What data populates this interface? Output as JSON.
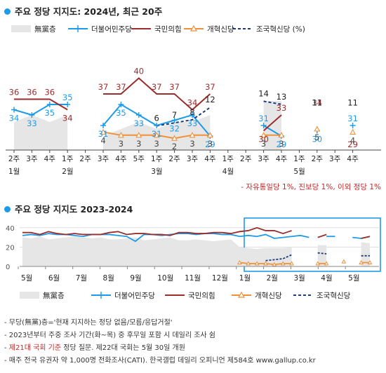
{
  "top": {
    "title": "주요 정당 지지도: 2024년, 최근 20주",
    "footnote": "- 자유통일당 1%, 진보당 1%, 이외 정당 1%"
  },
  "bottom": {
    "title": "주요 정당 지지도 2023-2024"
  },
  "legend": [
    "無黨층",
    "더불어민주당",
    "국민의힘",
    "개혁신당",
    "조국혁신당 (%)"
  ],
  "legend_bottom": [
    "無黨층",
    "더불어민주당",
    "국민의힘",
    "개혁신당",
    "조국혁신당"
  ],
  "colors": {
    "dem": "#1e9be8",
    "ppp": "#9b2d2d",
    "reform": "#f0913a",
    "rebuild": "#1c3d7a",
    "none": "#e6e6e6",
    "accent": "#1e9be8"
  },
  "notes": [
    "- 무당(無黨)층='현재 지지하는 정당 없음/모름/응답거절'",
    "- 2023년부터 주중 조사 기간(화~목) 중 후무일 포함 시 데일리 조사 쉼",
    "- 제21대 국회 기준 정당 질문. 제22대 국회는 5월 30일 개원",
    "- 매주 전국 유권자 약 1,000명 전화조사(CATI). 한국갤럽 데일리 오피니언 제584호 www.gallup.co.kr"
  ],
  "note3_red": "제21대 국회 기준",
  "note3_rest": " 정당 질문. 제22대 국회는 5월 30일 개원",
  "chart_data": [
    {
      "type": "line",
      "x": [
        "2주",
        "3주",
        "4주",
        "1주",
        "2주",
        "3주",
        "4주",
        "5주",
        "1주",
        "2주",
        "3주",
        "4주",
        "1주",
        "2주",
        "3주",
        "4주",
        "1주",
        "2주",
        "3주",
        "4주"
      ],
      "months": [
        {
          "label": "1월",
          "at": 0
        },
        {
          "label": "2월",
          "at": 3
        },
        {
          "label": "3월",
          "at": 8
        },
        {
          "label": "4월",
          "at": 12
        },
        {
          "label": "5월",
          "at": 16
        }
      ],
      "series": [
        {
          "name": "더불어민주당",
          "values": [
            34,
            33,
            35,
            35,
            null,
            31,
            35,
            33,
            31,
            32,
            33,
            29,
            null,
            null,
            31,
            29,
            null,
            30,
            null,
            31
          ]
        },
        {
          "name": "국민의힘",
          "values": [
            36,
            36,
            36,
            34,
            null,
            37,
            37,
            40,
            37,
            37,
            34,
            37,
            null,
            null,
            30,
            33,
            null,
            34,
            null,
            29
          ]
        },
        {
          "name": "개혁신당",
          "values": [
            null,
            null,
            null,
            null,
            null,
            4,
            3,
            3,
            3,
            2,
            3,
            3,
            null,
            null,
            3,
            3,
            null,
            5,
            null,
            4
          ]
        },
        {
          "name": "조국혁신당",
          "values": [
            null,
            null,
            null,
            null,
            null,
            null,
            null,
            null,
            6,
            7,
            8,
            12,
            null,
            null,
            14,
            13,
            null,
            11,
            null,
            11
          ]
        },
        {
          "name": "無黨층",
          "values": [
            19,
            20,
            19,
            20,
            null,
            17,
            18,
            19,
            18,
            19,
            19,
            20,
            null,
            null,
            22,
            22,
            null,
            24,
            null,
            25
          ]
        }
      ]
    },
    {
      "type": "line",
      "title": "주요 정당 지지도 2023-2024",
      "ylim": [
        0,
        40
      ],
      "yticks": [
        "0",
        "20",
        "40"
      ],
      "months": [
        "5월",
        "6월",
        "7월",
        "8월",
        "9월",
        "10월",
        "11월",
        "12월",
        "1월",
        "2월",
        "3월",
        "4월",
        "5월"
      ],
      "highlight_from_month": "2월",
      "series": [
        {
          "name": "더불어민주당",
          "values": [
            32,
            33,
            32,
            34,
            33,
            33,
            32,
            31,
            33,
            33,
            33,
            32,
            31,
            26,
            33,
            33,
            32,
            33,
            34,
            34,
            33,
            34,
            34,
            33,
            33,
            31,
            32,
            31,
            33,
            29,
            30,
            31,
            32,
            30,
            null,
            31,
            31,
            null,
            30,
            29,
            31
          ]
        },
        {
          "name": "국민의힘",
          "values": [
            35,
            35,
            33,
            36,
            34,
            33,
            34,
            33,
            33,
            33,
            35,
            36,
            33,
            34,
            34,
            33,
            33,
            32,
            35,
            35,
            34,
            34,
            35,
            35,
            34,
            36,
            37,
            40,
            37,
            37,
            34,
            37,
            null,
            null,
            30,
            33,
            null,
            34,
            null,
            29,
            31
          ]
        },
        {
          "name": "개혁신당",
          "values": [
            null,
            null,
            null,
            null,
            null,
            null,
            null,
            null,
            null,
            null,
            null,
            null,
            null,
            null,
            null,
            null,
            null,
            null,
            null,
            null,
            null,
            null,
            null,
            null,
            null,
            4,
            3,
            3,
            3,
            2,
            3,
            3,
            null,
            null,
            3,
            3,
            null,
            5,
            null,
            4,
            4
          ]
        },
        {
          "name": "조국혁신당",
          "values": [
            null,
            null,
            null,
            null,
            null,
            null,
            null,
            null,
            null,
            null,
            null,
            null,
            null,
            null,
            null,
            null,
            null,
            null,
            null,
            null,
            null,
            null,
            null,
            null,
            null,
            null,
            null,
            null,
            6,
            7,
            8,
            12,
            null,
            null,
            14,
            13,
            null,
            11,
            null,
            11,
            11
          ]
        },
        {
          "name": "無黨층",
          "values": [
            30,
            29,
            31,
            28,
            29,
            30,
            31,
            30,
            29,
            30,
            28,
            28,
            29,
            30,
            27,
            28,
            29,
            30,
            27,
            27,
            28,
            27,
            26,
            27,
            28,
            20,
            19,
            18,
            19,
            19,
            19,
            20,
            null,
            null,
            22,
            22,
            null,
            24,
            null,
            25,
            24
          ]
        }
      ]
    }
  ]
}
